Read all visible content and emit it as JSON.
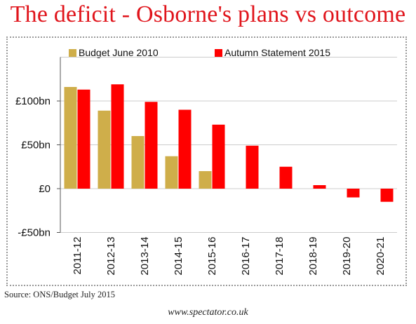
{
  "header": {
    "title": "The deficit - Osborne's plans vs outcome"
  },
  "footer": {
    "source": "Source: ONS/Budget July 2015",
    "url": "www.spectator.co.uk"
  },
  "colors": {
    "title": "#e0141b",
    "budget": "#cfae4a",
    "autumn": "#ff0000",
    "grid": "#cccccc",
    "axis": "#555555"
  },
  "chart_data": {
    "type": "bar",
    "title": "",
    "xlabel": "",
    "ylabel": "",
    "categories": [
      "2011-12",
      "2012-13",
      "2013-14",
      "2014-15",
      "2015-16",
      "2016-17",
      "2017-18",
      "2018-19",
      "2019-20",
      "2020-21"
    ],
    "series": [
      {
        "name": "Budget June 2010",
        "color": "#cfae4a",
        "values": [
          116,
          89,
          60,
          37,
          20,
          null,
          null,
          null,
          null,
          null
        ]
      },
      {
        "name": "Autumn Statement 2015",
        "color": "#ff0000",
        "values": [
          113,
          119,
          99,
          90,
          73,
          49,
          25,
          4,
          -10,
          -15
        ]
      }
    ],
    "ylim": [
      -50,
      150
    ],
    "yticks": [
      -50,
      0,
      50,
      100
    ],
    "ytick_labels": [
      "-£50bn",
      "£0",
      "£50bn",
      "£100bn"
    ],
    "grid": true,
    "legend": "top"
  }
}
